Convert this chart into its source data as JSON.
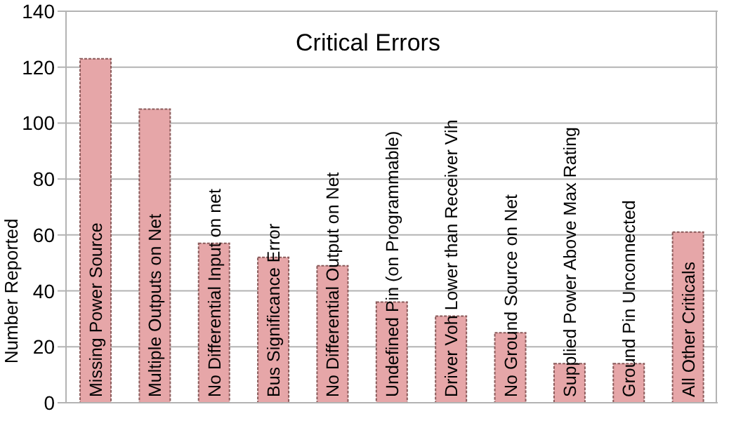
{
  "chart_data": {
    "type": "bar",
    "title": "Critical Errors",
    "ylabel": "Number Reported",
    "categories": [
      "Missing Power Source",
      "Multiple Outputs on Net",
      "No Differential Input on net",
      "Bus Significance Error",
      "No Differential Output on Net",
      "Undefined Pin (on Programmable)",
      "Driver Voh Lower than Receiver Vih",
      "No Ground Source on Net",
      "Supplied Power Above Max Rating",
      "Ground Pin Unconnected",
      "All Other Criticals"
    ],
    "values": [
      123,
      105,
      57,
      52,
      49,
      36,
      31,
      25,
      14,
      14,
      61
    ],
    "color": "#e6a6a8",
    "ylim": [
      0,
      140
    ],
    "yticks": [
      0,
      20,
      40,
      60,
      80,
      100,
      120,
      140
    ],
    "grid": "y",
    "legend": false
  }
}
